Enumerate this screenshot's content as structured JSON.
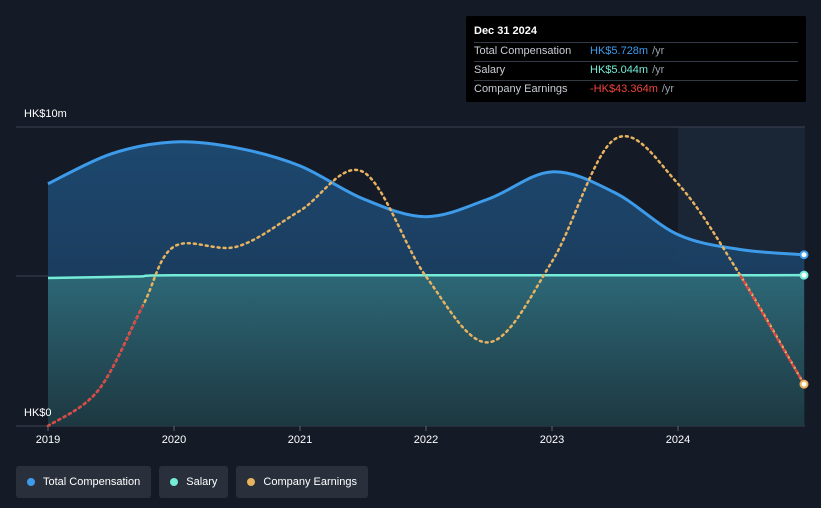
{
  "tooltip": {
    "date": "Dec 31 2024",
    "rows": [
      {
        "label": "Total Compensation",
        "value": "HK$5.728m",
        "unit": "/yr",
        "color": "#3d9be9"
      },
      {
        "label": "Salary",
        "value": "HK$5.044m",
        "unit": "/yr",
        "color": "#74ecd8"
      },
      {
        "label": "Company Earnings",
        "value": "-HK$43.364m",
        "unit": "/yr",
        "color": "#f0453f"
      }
    ]
  },
  "legend": [
    {
      "label": "Total Compensation",
      "color": "#3d9be9"
    },
    {
      "label": "Salary",
      "color": "#74ecd8"
    },
    {
      "label": "Company Earnings",
      "color": "#e8b360"
    }
  ],
  "chart_data": {
    "type": "area",
    "ylabel_top": "HK$10m",
    "ylabel_bottom": "HK$0",
    "ylim": [
      0,
      10
    ],
    "xlim": [
      2019.0,
      2025.0
    ],
    "x_ticks": [
      "2019",
      "2020",
      "2021",
      "2022",
      "2023",
      "2024"
    ],
    "x_tick_values": [
      2019,
      2020,
      2021,
      2022,
      2023,
      2024
    ],
    "highlight_from": 2024.0,
    "series": [
      {
        "name": "Total Compensation",
        "color": "#3d9be9",
        "points": [
          [
            2019.0,
            8.1
          ],
          [
            2019.5,
            9.1
          ],
          [
            2020.0,
            9.5
          ],
          [
            2020.5,
            9.3
          ],
          [
            2021.0,
            8.7
          ],
          [
            2021.5,
            7.6
          ],
          [
            2022.0,
            7.0
          ],
          [
            2022.5,
            7.6
          ],
          [
            2023.0,
            8.5
          ],
          [
            2023.5,
            7.8
          ],
          [
            2024.0,
            6.4
          ],
          [
            2024.5,
            5.9
          ],
          [
            2025.0,
            5.728
          ]
        ]
      },
      {
        "name": "Salary",
        "color": "#74ecd8",
        "points": [
          [
            2019.0,
            4.95
          ],
          [
            2019.7,
            5.0
          ],
          [
            2020.0,
            5.04
          ],
          [
            2022.0,
            5.04
          ],
          [
            2025.0,
            5.044
          ]
        ]
      },
      {
        "name": "Company Earnings",
        "color": "#e8b360",
        "negative_color": "#e04545",
        "scaled_note": "plotted on an independent scale; shape only",
        "points": [
          [
            2019.0,
            0.0
          ],
          [
            2019.4,
            1.2
          ],
          [
            2019.75,
            4.0
          ],
          [
            2020.0,
            6.0
          ],
          [
            2020.5,
            6.0
          ],
          [
            2021.0,
            7.2
          ],
          [
            2021.5,
            8.5
          ],
          [
            2022.0,
            5.0
          ],
          [
            2022.5,
            2.8
          ],
          [
            2023.0,
            5.5
          ],
          [
            2023.5,
            9.6
          ],
          [
            2024.0,
            8.1
          ],
          [
            2024.5,
            5.0
          ],
          [
            2025.0,
            1.4
          ]
        ]
      }
    ]
  }
}
